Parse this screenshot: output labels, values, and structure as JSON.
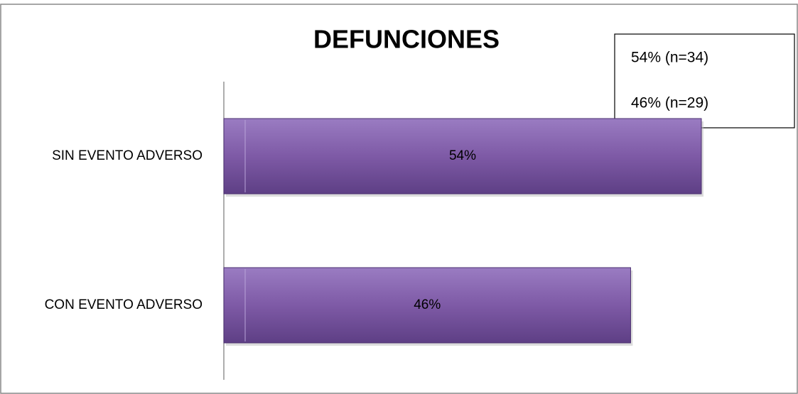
{
  "chart_data": {
    "type": "bar",
    "orientation": "horizontal",
    "title": "DEFUNCIONES",
    "categories": [
      "SIN EVENTO ADVERSO",
      "CON EVENTO ADVERSO"
    ],
    "values": [
      54,
      46
    ],
    "value_labels": [
      "54%",
      "46%"
    ],
    "color": "#7e5aa6",
    "legend_entries": [
      "54% (n=34)",
      "46% (n=29)"
    ]
  }
}
